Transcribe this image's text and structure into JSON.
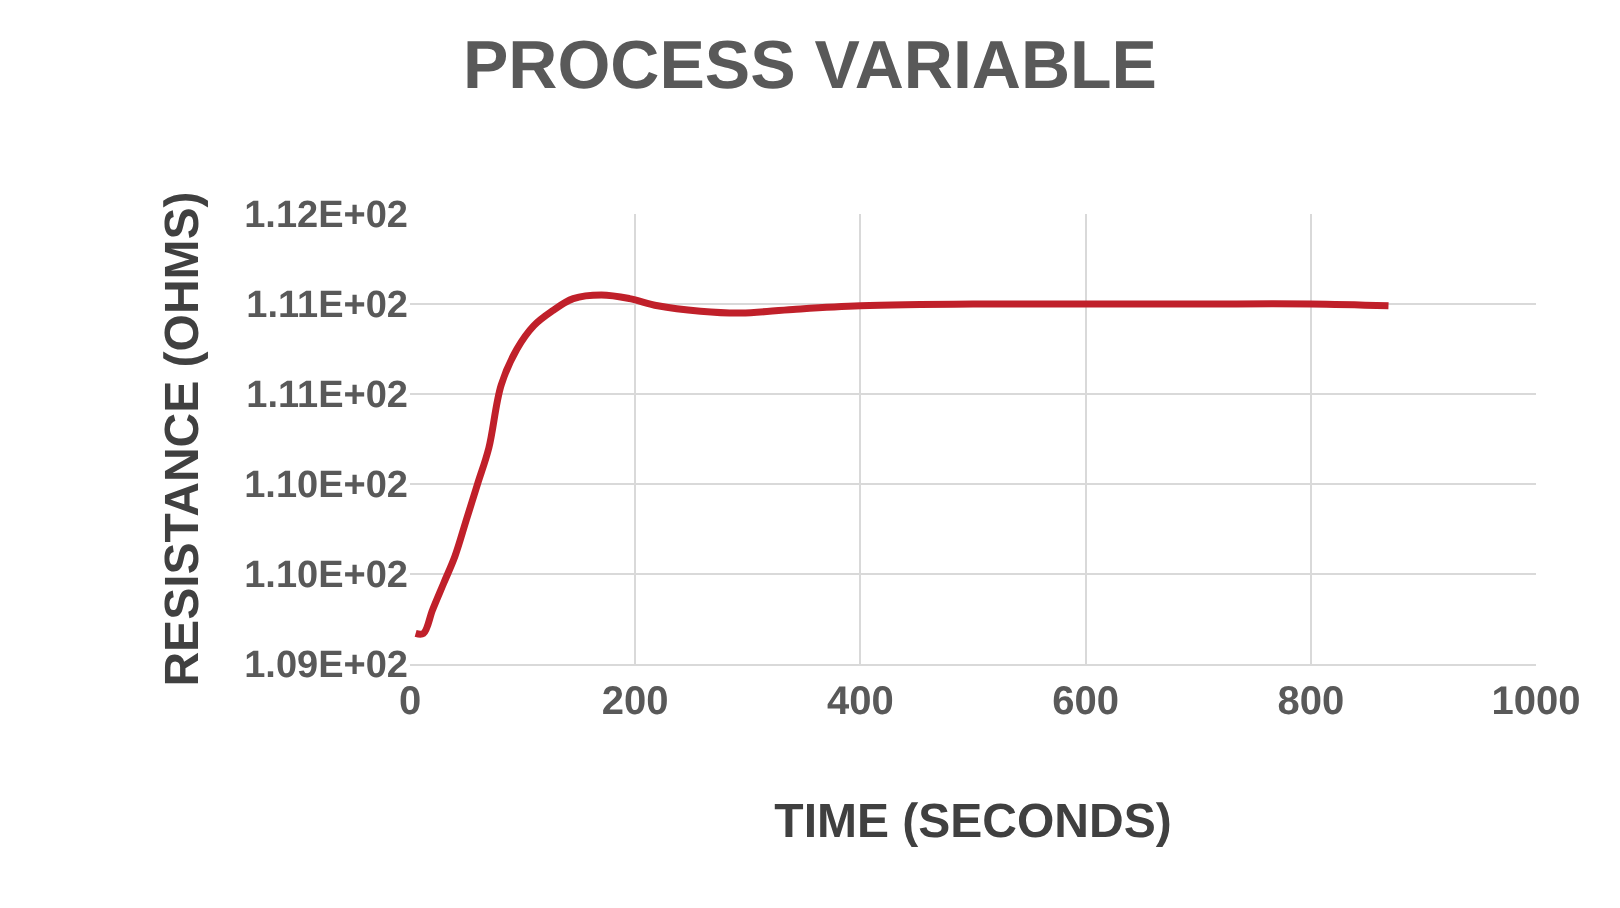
{
  "chart_data": {
    "type": "line",
    "title": "PROCESS VARIABLE",
    "xlabel": "TIME (SECONDS)",
    "ylabel": "RESISTANCE (OHMS)",
    "x": [
      5,
      12,
      20,
      30,
      40,
      50,
      60,
      70,
      81,
      95,
      110,
      126,
      145,
      170,
      195,
      220,
      258,
      294,
      340,
      400,
      500,
      600,
      700,
      800,
      869
    ],
    "series": [
      {
        "color": "#c0202a",
        "values": [
          109.17,
          109.17,
          109.3,
          109.45,
          109.6,
          109.8,
          110.0,
          110.2,
          110.55,
          110.75,
          110.88,
          110.96,
          111.03,
          111.05,
          111.03,
          110.99,
          110.96,
          110.95,
          110.97,
          110.99,
          111.0,
          111.0,
          111.0,
          111.0,
          110.99
        ]
      }
    ],
    "xlim": [
      0,
      1000
    ],
    "xticks": [
      0,
      200,
      400,
      600,
      800,
      1000
    ],
    "ylim": [
      109,
      111.5
    ],
    "yticks": [
      {
        "value": 109,
        "label": "1.09E+02"
      },
      {
        "value": 109.5,
        "label": "1.10E+02"
      },
      {
        "value": 110,
        "label": "1.10E+02"
      },
      {
        "value": 110.5,
        "label": "1.11E+02"
      },
      {
        "value": 111,
        "label": "1.11E+02"
      },
      {
        "value": 111.5,
        "label": "1.12E+02"
      }
    ],
    "grid": true,
    "legend": false,
    "marker": "none",
    "line_style": "solid"
  }
}
